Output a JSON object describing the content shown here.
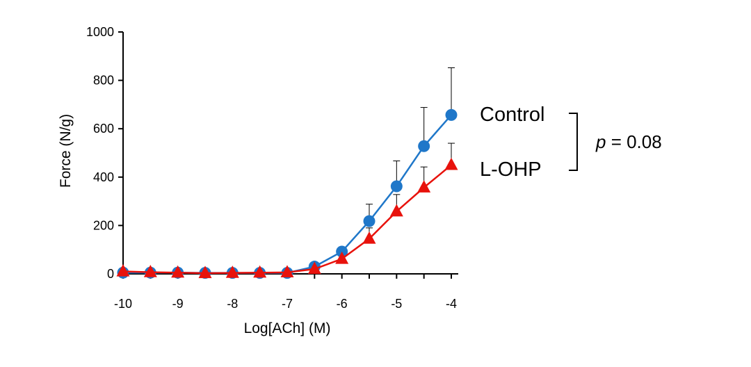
{
  "chart_data": {
    "type": "line",
    "xlabel": "Log[ACh] (M)",
    "ylabel": "Force (N/g)",
    "xlim": [
      -10,
      -4
    ],
    "ylim": [
      0,
      1000
    ],
    "xticks": [
      -10,
      -9,
      -8,
      -7,
      -6,
      -5,
      -4
    ],
    "yticks": [
      0,
      200,
      400,
      600,
      800,
      1000
    ],
    "x": [
      -10,
      -9.5,
      -9,
      -8.5,
      -8,
      -7.5,
      -7,
      -6.5,
      -6,
      -5.5,
      -5,
      -4.5,
      -4
    ],
    "series": [
      {
        "name": "Control",
        "color": "#1f77c9",
        "marker": "circle",
        "values": [
          5,
          5,
          5,
          4,
          4,
          4,
          4,
          30,
          92,
          218,
          362,
          528,
          657
        ],
        "error": [
          0,
          0,
          0,
          0,
          0,
          0,
          0,
          0,
          0,
          70,
          105,
          160,
          195
        ]
      },
      {
        "name": "L-OHP",
        "color": "#e8120c",
        "marker": "triangle",
        "values": [
          10,
          7,
          5,
          3,
          4,
          5,
          6,
          20,
          62,
          145,
          258,
          357,
          450
        ],
        "error": [
          0,
          0,
          0,
          0,
          0,
          0,
          0,
          0,
          0,
          45,
          70,
          85,
          90
        ]
      }
    ],
    "annotation": {
      "p_symbol": "p",
      "p_rest": " = 0.08"
    }
  }
}
